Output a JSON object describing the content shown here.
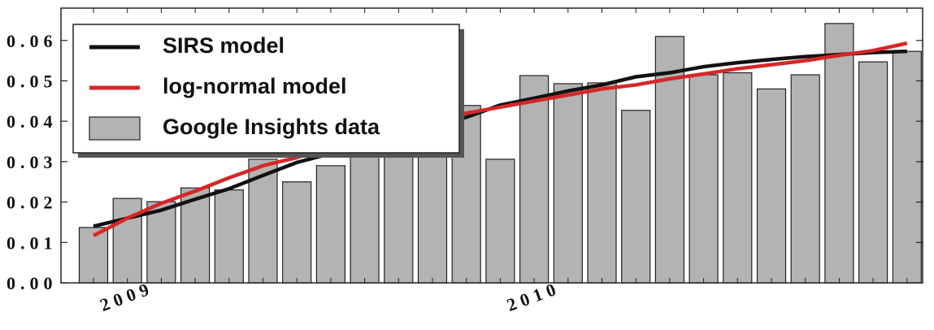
{
  "chart_data": {
    "type": "bar",
    "categories": [
      null,
      null,
      "2009",
      null,
      null,
      null,
      null,
      null,
      null,
      null,
      null,
      null,
      null,
      null,
      "2010",
      null,
      null,
      null,
      null,
      null,
      null,
      null,
      null,
      null,
      null
    ],
    "series": [
      {
        "name": "Google Insights data",
        "type": "bar",
        "color": "#b3b3b3",
        "values": [
          0.0137,
          0.0209,
          0.0201,
          0.0235,
          0.023,
          0.0306,
          0.025,
          0.029,
          0.034,
          0.036,
          0.038,
          0.0439,
          0.0306,
          0.0513,
          0.0493,
          0.0495,
          0.0427,
          0.061,
          0.0515,
          0.052,
          0.048,
          0.0515,
          0.0642,
          0.0547,
          0.0573
        ]
      },
      {
        "name": "SIRS model",
        "type": "line",
        "color": "#111111",
        "values": [
          0.014,
          0.016,
          0.018,
          0.0207,
          0.0233,
          0.0266,
          0.0298,
          0.032,
          0.035,
          0.037,
          0.039,
          0.041,
          0.044,
          0.0457,
          0.0475,
          0.049,
          0.051,
          0.052,
          0.0535,
          0.0545,
          0.0553,
          0.056,
          0.0565,
          0.057,
          0.0573
        ]
      },
      {
        "name": "log-normal model",
        "type": "line",
        "color": "#d62728",
        "values": [
          0.0117,
          0.016,
          0.0197,
          0.0227,
          0.026,
          0.029,
          0.031,
          0.034,
          0.036,
          0.038,
          0.04,
          0.042,
          0.0435,
          0.045,
          0.0465,
          0.048,
          0.049,
          0.0505,
          0.0517,
          0.053,
          0.054,
          0.055,
          0.0563,
          0.0575,
          0.0593
        ]
      }
    ],
    "ylim": [
      0,
      0.068
    ],
    "yticks": [
      {
        "value": 0,
        "label": "0.00"
      },
      0.01,
      0.02,
      0.03,
      0.04,
      0.05,
      0.06
    ],
    "legend": "upper left"
  }
}
